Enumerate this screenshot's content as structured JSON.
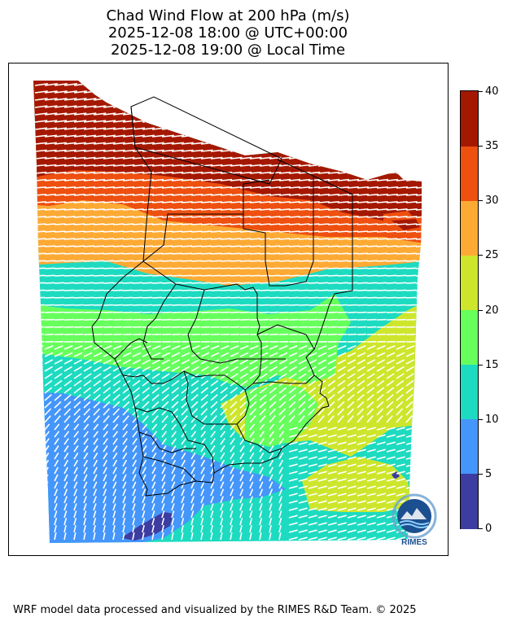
{
  "title": {
    "line1": "Chad Wind Flow at 200 hPa (m/s)",
    "line2": "2025-12-08 18:00 @ UTC+00:00",
    "line3": "2025-12-08 19:00 @ Local Time"
  },
  "colorbar": {
    "min": 0,
    "max": 40,
    "levels": [
      {
        "from": 0,
        "to": 5,
        "color": "#3d3ca0"
      },
      {
        "from": 5,
        "to": 10,
        "color": "#4596fa"
      },
      {
        "from": 10,
        "to": 15,
        "color": "#1ddbc0"
      },
      {
        "from": 15,
        "to": 20,
        "color": "#66ff5c"
      },
      {
        "from": 20,
        "to": 25,
        "color": "#cde62c"
      },
      {
        "from": 25,
        "to": 30,
        "color": "#fdaa35"
      },
      {
        "from": 30,
        "to": 35,
        "color": "#ee5010"
      },
      {
        "from": 35,
        "to": 40,
        "color": "#a51800"
      }
    ],
    "tick_labels": [
      "0",
      "5",
      "10",
      "15",
      "20",
      "25",
      "30",
      "35",
      "40"
    ]
  },
  "legend_placement": "right",
  "logo": {
    "name": "rimes-logo",
    "text": "RIMES"
  },
  "footer": {
    "text": "WRF model data processed and visualized by the RIMES R&D Team. © 2025"
  }
}
